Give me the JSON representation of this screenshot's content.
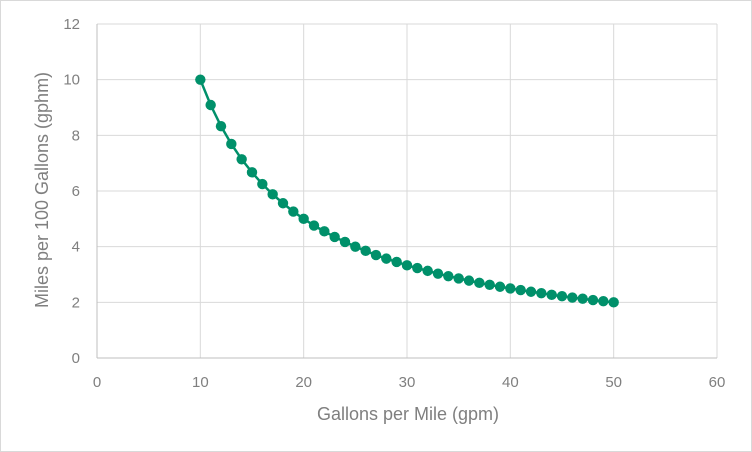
{
  "chart_data": {
    "type": "scatter",
    "title": "",
    "xlabel": "Gallons per Mile (gpm)",
    "ylabel": "Miles per 100 Gallons (gphm)",
    "xlim": [
      0,
      60
    ],
    "ylim": [
      0,
      12
    ],
    "x_ticks": [
      "0",
      "10",
      "20",
      "30",
      "40",
      "50",
      "60"
    ],
    "y_ticks": [
      "0",
      "2",
      "4",
      "6",
      "8",
      "10",
      "12"
    ],
    "grid": true,
    "legend": "none",
    "series": [
      {
        "color": "#00906a",
        "x": [
          10,
          11,
          12,
          13,
          14,
          15,
          16,
          17,
          18,
          19,
          20,
          21,
          22,
          23,
          24,
          25,
          26,
          27,
          28,
          29,
          30,
          31,
          32,
          33,
          34,
          35,
          36,
          37,
          38,
          39,
          40,
          41,
          42,
          43,
          44,
          45,
          46,
          47,
          48,
          49,
          50
        ],
        "y": [
          10.0,
          9.09,
          8.33,
          7.69,
          7.14,
          6.67,
          6.25,
          5.88,
          5.56,
          5.26,
          5.0,
          4.76,
          4.55,
          4.35,
          4.17,
          4.0,
          3.85,
          3.7,
          3.57,
          3.45,
          3.33,
          3.23,
          3.13,
          3.03,
          2.94,
          2.86,
          2.78,
          2.7,
          2.63,
          2.56,
          2.5,
          2.44,
          2.38,
          2.33,
          2.27,
          2.22,
          2.17,
          2.13,
          2.08,
          2.04,
          2.0
        ]
      }
    ]
  }
}
